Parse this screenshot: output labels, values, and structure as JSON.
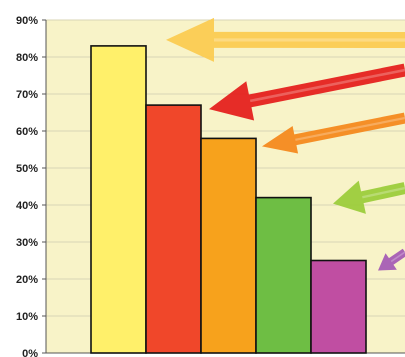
{
  "chart_data": {
    "type": "bar",
    "categories": [
      "",
      "",
      "",
      "",
      ""
    ],
    "values": [
      83,
      67,
      58,
      42,
      25
    ],
    "colors": [
      "#FFF06A",
      "#F0472A",
      "#F7A21C",
      "#6EBE44",
      "#C04EA2"
    ],
    "ylim": [
      0,
      90
    ],
    "yticks": [
      "0%",
      "10%",
      "20%",
      "30%",
      "40%",
      "50%",
      "60%",
      "70%",
      "80%",
      "90%"
    ],
    "grid": true,
    "plot_background": "#F8F3C8",
    "gridline_color": "#D9D6B6",
    "annotations": [
      {
        "type": "hand-drawn-arrow",
        "color": "#FBCB52",
        "points_to": 0
      },
      {
        "type": "hand-drawn-arrow",
        "color": "#E5211F",
        "points_to": 1
      },
      {
        "type": "hand-drawn-arrow",
        "color": "#F4891F",
        "points_to": 2
      },
      {
        "type": "hand-drawn-arrow",
        "color": "#9CCC3C",
        "points_to": 3
      },
      {
        "type": "hand-drawn-arrow",
        "color": "#A55DB5",
        "points_to": 4
      }
    ]
  }
}
